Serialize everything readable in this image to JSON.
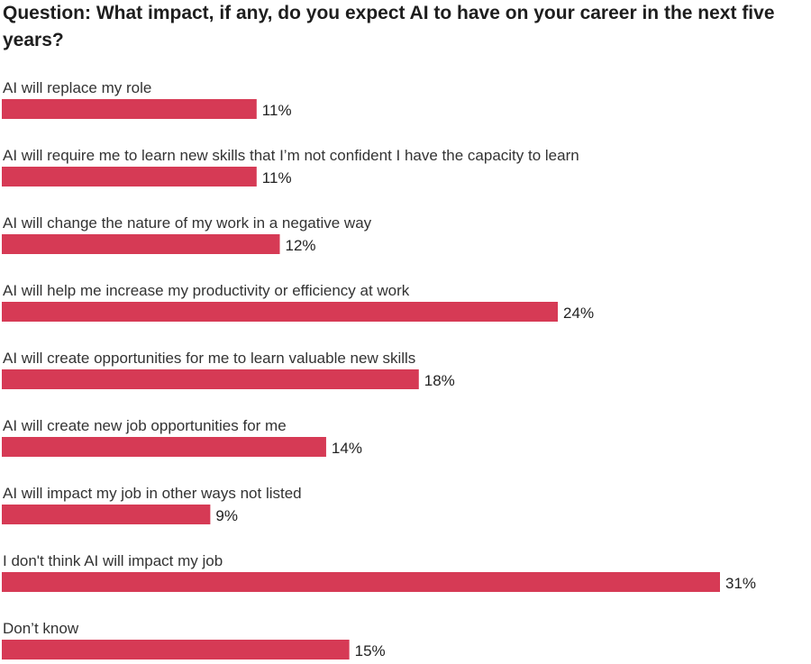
{
  "chart_data": {
    "type": "bar",
    "orientation": "horizontal",
    "title": "Question: What impact, if any, do you expect AI to have on your career in the next five years?",
    "categories": [
      "AI will replace my role",
      "AI will require me to learn new skills that I’m not confident I have the capacity to learn",
      "AI will change the nature of my work in a negative way",
      "AI will help me increase my productivity or efficiency at work",
      "AI will create opportunities for me to learn valuable new skills",
      "AI will create new job opportunities for me",
      "AI will impact my job in other ways not listed",
      "I don't think AI will impact my job",
      "Don’t know"
    ],
    "values": [
      11,
      11,
      12,
      24,
      18,
      14,
      9,
      31,
      15
    ],
    "value_labels": [
      "11%",
      "11%",
      "12%",
      "24%",
      "18%",
      "14%",
      "9%",
      "31%",
      "15%"
    ],
    "unit": "%",
    "bar_color": "#d63a55",
    "xlim": [
      0,
      31
    ],
    "grid": false,
    "legend": "none"
  }
}
